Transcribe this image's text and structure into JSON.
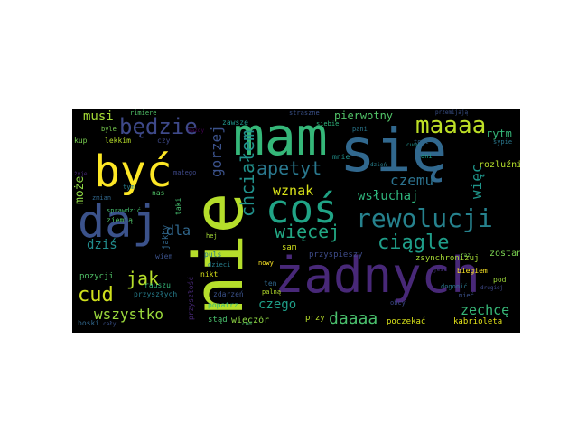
{
  "palette": [
    "#440154",
    "#46327e",
    "#365c8d",
    "#277f8e",
    "#1fa187",
    "#4ac16d",
    "#a0da39",
    "#fde725"
  ],
  "words": [
    {
      "text": "nie",
      "color": "#b5de2b"
    },
    {
      "text": "mam",
      "color": "#35b779"
    },
    {
      "text": "się",
      "color": "#31688e"
    },
    {
      "text": "być",
      "color": "#fde725"
    },
    {
      "text": "daj",
      "color": "#3b528b"
    },
    {
      "text": "coś",
      "color": "#20a486"
    },
    {
      "text": "żadnych",
      "color": "#482878"
    },
    {
      "text": "rewolucji",
      "color": "#26828e"
    },
    {
      "text": "będzie",
      "color": "#3e4989"
    },
    {
      "text": "maaaa",
      "color": "#bddf26"
    },
    {
      "text": "apetyt",
      "color": "#2a788e"
    },
    {
      "text": "chciałem",
      "color": "#21918c"
    },
    {
      "text": "ciągle",
      "color": "#1f9e89"
    },
    {
      "text": "więcej",
      "color": "#22a884"
    },
    {
      "text": "wznak",
      "color": "#d8e219"
    },
    {
      "text": "czemu",
      "color": "#2c728e"
    },
    {
      "text": "wsłuchaj",
      "color": "#2fb47c"
    },
    {
      "text": "więc",
      "color": "#1f968b"
    },
    {
      "text": "gorzej",
      "color": "#3b528b"
    },
    {
      "text": "pierwotny",
      "color": "#52c569"
    },
    {
      "text": "musi",
      "color": "#a5db36"
    },
    {
      "text": "może",
      "color": "#8fd744"
    },
    {
      "text": "dziś",
      "color": "#228c8d"
    },
    {
      "text": "dla",
      "color": "#31688e"
    },
    {
      "text": "jak",
      "color": "#b5de2b"
    },
    {
      "text": "cud",
      "color": "#d0e11c"
    },
    {
      "text": "wszystko",
      "color": "#9bd93c"
    },
    {
      "text": "czego",
      "color": "#1f9f88"
    },
    {
      "text": "daaaa",
      "color": "#4ac16d"
    },
    {
      "text": "zechcę",
      "color": "#37b878"
    },
    {
      "text": "rytm",
      "color": "#35b779"
    },
    {
      "text": "zostanę",
      "color": "#7ad151"
    },
    {
      "text": "poczekać",
      "color": "#d8e219"
    },
    {
      "text": "kabrioleta",
      "color": "#e5e419"
    },
    {
      "text": "zsynchronizuj",
      "color": "#a8db34"
    },
    {
      "text": "przyspieszy",
      "color": "#3e4c8a"
    },
    {
      "text": "sam",
      "color": "#d0e11c"
    },
    {
      "text": "wieczór",
      "color": "#8fd744"
    },
    {
      "text": "stąd",
      "color": "#4ac16d"
    },
    {
      "text": "przy",
      "color": "#b8de29"
    },
    {
      "text": "boski",
      "color": "#31688e"
    },
    {
      "text": "pozycji",
      "color": "#52c569"
    },
    {
      "text": "przyszłych",
      "color": "#277f8e"
    },
    {
      "text": "zdarzeń",
      "color": "#3b528b"
    },
    {
      "text": "rauszu",
      "color": "#35b779"
    },
    {
      "text": "ziemią",
      "color": "#52c569"
    },
    {
      "text": "sprawdzić",
      "color": "#46c06f"
    },
    {
      "text": "biegiem",
      "color": "#fde725"
    },
    {
      "text": "dogonić",
      "color": "#2a788e"
    },
    {
      "text": "pod",
      "color": "#9fda3a"
    },
    {
      "text": "drugiej",
      "color": "#3e4989"
    },
    {
      "text": "mieć",
      "color": "#3b528b"
    },
    {
      "text": "zawsze",
      "color": "#1f968b"
    },
    {
      "text": "straszne",
      "color": "#3b528b"
    },
    {
      "text": "siebie",
      "color": "#2fb47c"
    },
    {
      "text": "rimiere",
      "color": "#52c569"
    },
    {
      "text": "kup",
      "color": "#7ad151"
    },
    {
      "text": "lekkim",
      "color": "#b8de29"
    },
    {
      "text": "czy",
      "color": "#3e4989"
    },
    {
      "text": "pani",
      "color": "#2a788e"
    },
    {
      "text": "cudu",
      "color": "#21918c"
    },
    {
      "text": "tort",
      "color": "#31688e"
    },
    {
      "text": "dni",
      "color": "#1f9e89"
    },
    {
      "text": "nas",
      "color": "#52c569"
    },
    {
      "text": "taki",
      "color": "#46c06f"
    },
    {
      "text": "hej",
      "color": "#a5db36"
    },
    {
      "text": "puls",
      "color": "#2a788e"
    },
    {
      "text": "dzieci",
      "color": "#277f8e"
    },
    {
      "text": "nikt",
      "color": "#d8e219"
    },
    {
      "text": "popatrz",
      "color": "#35b779"
    },
    {
      "text": "palną",
      "color": "#b5de2b"
    },
    {
      "text": "ten",
      "color": "#31688e"
    },
    {
      "text": "mnie",
      "color": "#21918c"
    },
    {
      "text": "małego",
      "color": "#3e4989"
    },
    {
      "text": "zmian",
      "color": "#31688e"
    },
    {
      "text": "tym",
      "color": "#277f8e"
    },
    {
      "text": "wiem",
      "color": "#3b528b"
    },
    {
      "text": "cud",
      "color": "#46c06f"
    },
    {
      "text": "byle",
      "color": "#7ad151"
    },
    {
      "text": "jakby",
      "color": "#31688e"
    },
    {
      "text": "rozluźnić",
      "color": "#b5de2b"
    },
    {
      "text": "przyszłość",
      "color": "#482878"
    },
    {
      "text": "jest",
      "color": "#46327e"
    },
    {
      "text": "obcy",
      "color": "#3e4989"
    },
    {
      "text": "nowy",
      "color": "#fde725"
    },
    {
      "text": "sypie",
      "color": "#2a788e"
    },
    {
      "text": "przemijają",
      "color": "#3b528b"
    },
    {
      "text": "raz",
      "color": "#7ad151"
    },
    {
      "text": "cały",
      "color": "#3b528b"
    },
    {
      "text": "dzień",
      "color": "#277f8e"
    },
    {
      "text": "każdy",
      "color": "#440154"
    },
    {
      "text": "żyje",
      "color": "#482878"
    }
  ]
}
